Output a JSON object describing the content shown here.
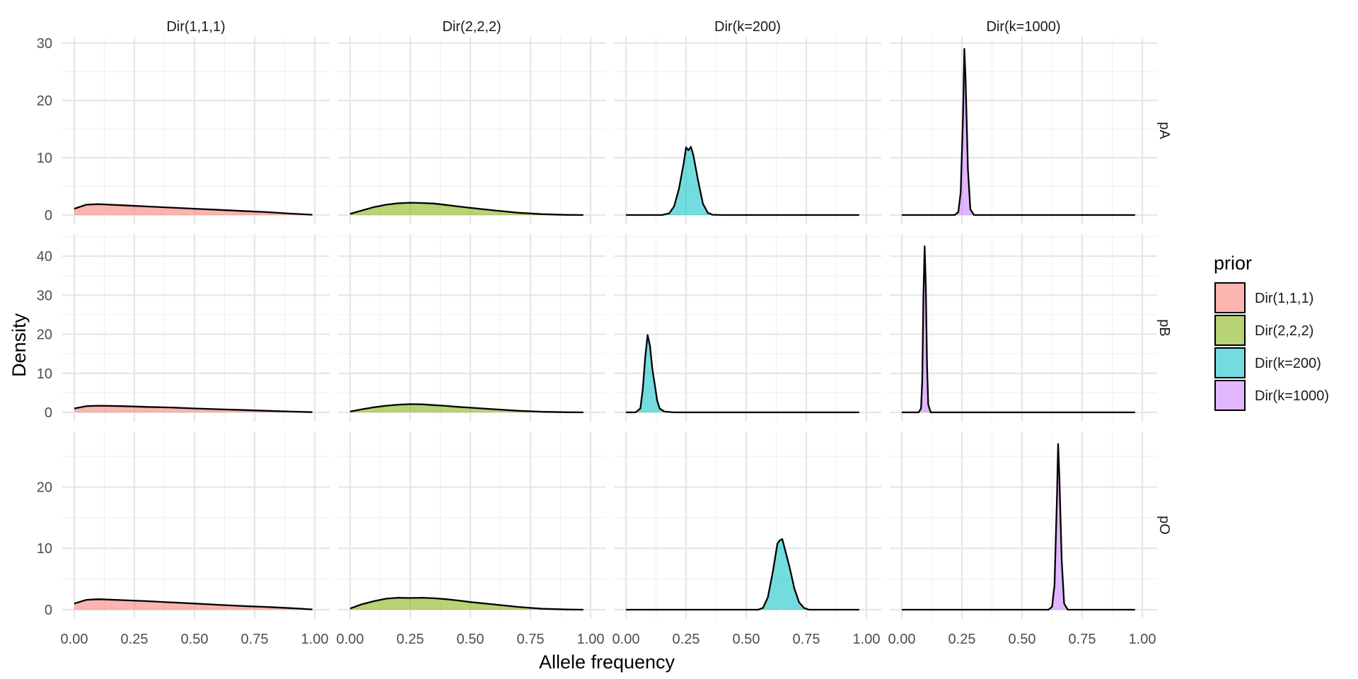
{
  "chart_data": {
    "type": "area",
    "facet_columns": [
      "Dir(1,1,1)",
      "Dir(2,2,2)",
      "Dir(k=200)",
      "Dir(k=1000)"
    ],
    "facet_rows": [
      "pA",
      "pB",
      "pO"
    ],
    "xlabel": "Allele frequency",
    "ylabel": "Density",
    "xlim": [
      0,
      1
    ],
    "x_ticks": [
      0,
      0.25,
      0.5,
      0.75,
      1
    ],
    "x_tick_labels": [
      "0.00",
      "0.25",
      "0.50",
      "0.75",
      "1.00"
    ],
    "rows": [
      {
        "name": "pA",
        "ylim": [
          0,
          30
        ],
        "y_ticks": [
          0,
          10,
          20,
          30
        ]
      },
      {
        "name": "pB",
        "ylim": [
          0,
          44
        ],
        "y_ticks": [
          0,
          10,
          20,
          30,
          40
        ]
      },
      {
        "name": "pO",
        "ylim": [
          0,
          28
        ],
        "y_ticks": [
          0,
          10,
          20
        ]
      }
    ],
    "grid": true,
    "legend": {
      "title": "prior",
      "position": "right",
      "entries": [
        {
          "label": "Dir(1,1,1)",
          "color": "#F8766D"
        },
        {
          "label": "Dir(2,2,2)",
          "color": "#7CAE00"
        },
        {
          "label": "Dir(k=200)",
          "color": "#00BFC4"
        },
        {
          "label": "Dir(k=1000)",
          "color": "#C77CFF"
        }
      ]
    },
    "series": [
      {
        "prior": "Dir(1,1,1)",
        "param": "pA",
        "x": [
          0,
          0.05,
          0.1,
          0.2,
          0.3,
          0.4,
          0.5,
          0.6,
          0.7,
          0.8,
          0.9,
          0.99
        ],
        "y": [
          1.1,
          1.8,
          1.9,
          1.7,
          1.5,
          1.3,
          1.1,
          0.9,
          0.7,
          0.5,
          0.25,
          0.05
        ]
      },
      {
        "prior": "Dir(2,2,2)",
        "param": "pA",
        "x": [
          0,
          0.05,
          0.1,
          0.15,
          0.2,
          0.25,
          0.3,
          0.35,
          0.4,
          0.45,
          0.5,
          0.6,
          0.7,
          0.8,
          0.9,
          0.97
        ],
        "y": [
          0.2,
          0.8,
          1.4,
          1.8,
          2.05,
          2.15,
          2.1,
          2.0,
          1.75,
          1.5,
          1.25,
          0.8,
          0.4,
          0.15,
          0.03,
          0
        ]
      },
      {
        "prior": "Dir(k=200)",
        "param": "pA",
        "x": [
          0,
          0.15,
          0.18,
          0.2,
          0.22,
          0.24,
          0.25,
          0.26,
          0.27,
          0.28,
          0.3,
          0.32,
          0.34,
          0.36,
          0.4,
          0.6,
          0.97
        ],
        "y": [
          0,
          0,
          0.3,
          1.5,
          4.5,
          9,
          11.8,
          11.3,
          11.9,
          10.5,
          6,
          2,
          0.4,
          0.05,
          0,
          0,
          0
        ]
      },
      {
        "prior": "Dir(k=1000)",
        "param": "pA",
        "x": [
          0,
          0.22,
          0.235,
          0.245,
          0.255,
          0.26,
          0.265,
          0.275,
          0.285,
          0.3,
          0.97
        ],
        "y": [
          0,
          0,
          0.5,
          4,
          18,
          29,
          24,
          8,
          1,
          0,
          0
        ]
      },
      {
        "prior": "Dir(1,1,1)",
        "param": "pB",
        "x": [
          0,
          0.05,
          0.1,
          0.2,
          0.3,
          0.4,
          0.5,
          0.6,
          0.7,
          0.8,
          0.9,
          0.99
        ],
        "y": [
          1.0,
          1.6,
          1.7,
          1.6,
          1.4,
          1.25,
          1.0,
          0.8,
          0.6,
          0.4,
          0.2,
          0.05
        ]
      },
      {
        "prior": "Dir(2,2,2)",
        "param": "pB",
        "x": [
          0,
          0.05,
          0.1,
          0.15,
          0.2,
          0.25,
          0.3,
          0.35,
          0.4,
          0.45,
          0.5,
          0.6,
          0.7,
          0.8,
          0.9,
          0.97
        ],
        "y": [
          0.2,
          0.8,
          1.3,
          1.7,
          1.95,
          2.1,
          2.05,
          1.85,
          1.65,
          1.4,
          1.2,
          0.8,
          0.4,
          0.15,
          0.03,
          0
        ]
      },
      {
        "prior": "Dir(k=200)",
        "param": "pB",
        "x": [
          0,
          0.04,
          0.06,
          0.07,
          0.08,
          0.09,
          0.1,
          0.11,
          0.12,
          0.13,
          0.14,
          0.16,
          0.2,
          0.97
        ],
        "y": [
          0,
          0,
          1,
          6,
          14,
          19.8,
          17,
          11,
          7,
          3,
          1,
          0.2,
          0,
          0
        ]
      },
      {
        "prior": "Dir(k=1000)",
        "param": "pB",
        "x": [
          0,
          0.07,
          0.08,
          0.085,
          0.09,
          0.095,
          0.1,
          0.105,
          0.11,
          0.12,
          0.97
        ],
        "y": [
          0,
          0,
          1,
          8,
          30,
          42.5,
          32,
          12,
          2,
          0,
          0
        ]
      },
      {
        "prior": "Dir(1,1,1)",
        "param": "pO",
        "x": [
          0,
          0.05,
          0.1,
          0.2,
          0.3,
          0.4,
          0.5,
          0.6,
          0.7,
          0.8,
          0.9,
          0.99
        ],
        "y": [
          1.0,
          1.6,
          1.7,
          1.55,
          1.4,
          1.2,
          1.0,
          0.8,
          0.6,
          0.45,
          0.25,
          0.05
        ]
      },
      {
        "prior": "Dir(2,2,2)",
        "param": "pO",
        "x": [
          0,
          0.05,
          0.1,
          0.15,
          0.2,
          0.25,
          0.3,
          0.35,
          0.4,
          0.45,
          0.5,
          0.6,
          0.7,
          0.8,
          0.9,
          0.97
        ],
        "y": [
          0.2,
          0.9,
          1.4,
          1.8,
          1.95,
          1.9,
          1.95,
          1.85,
          1.7,
          1.5,
          1.25,
          0.85,
          0.45,
          0.15,
          0.03,
          0
        ]
      },
      {
        "prior": "Dir(k=200)",
        "param": "pO",
        "x": [
          0,
          0.55,
          0.57,
          0.59,
          0.61,
          0.63,
          0.64,
          0.65,
          0.66,
          0.68,
          0.7,
          0.72,
          0.74,
          0.76,
          0.8,
          0.97
        ],
        "y": [
          0,
          0,
          0.3,
          2,
          6,
          10.8,
          11.3,
          11.5,
          10,
          7,
          3.5,
          1.2,
          0.3,
          0,
          0,
          0
        ]
      },
      {
        "prior": "Dir(k=1000)",
        "param": "pO",
        "x": [
          0,
          0.61,
          0.625,
          0.635,
          0.645,
          0.65,
          0.655,
          0.665,
          0.675,
          0.69,
          0.97
        ],
        "y": [
          0,
          0,
          0.5,
          4,
          18,
          27,
          22,
          8,
          1,
          0,
          0
        ]
      }
    ]
  }
}
